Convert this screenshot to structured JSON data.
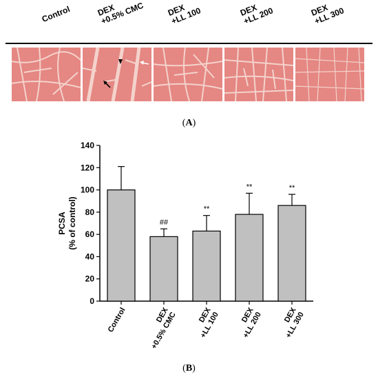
{
  "panel_a": {
    "caption_letter": "A",
    "columns": [
      {
        "line1": "Control",
        "line2": ""
      },
      {
        "line1": "DEX",
        "line2": "+0.5% CMC"
      },
      {
        "line1": "DEX",
        "line2": "+LL 100"
      },
      {
        "line1": "DEX",
        "line2": "+LL 200"
      },
      {
        "line1": "DEX",
        "line2": "+LL 300"
      }
    ],
    "tissue_color": "#e58783",
    "fiber_color": "#f4d3cc",
    "arrow_black": "#000000",
    "arrow_white": "#ffffff"
  },
  "panel_b": {
    "caption_letter": "B"
  },
  "chart_data": {
    "type": "bar",
    "categories": [
      {
        "line1": "Control",
        "line2": ""
      },
      {
        "line1": "DEX",
        "line2": "+0.5% CMC"
      },
      {
        "line1": "DEX",
        "line2": "+LL 100"
      },
      {
        "line1": "DEX",
        "line2": "+LL 200"
      },
      {
        "line1": "DEX",
        "line2": "+LL 300"
      }
    ],
    "values": [
      100,
      58,
      63,
      78,
      86
    ],
    "errors": [
      21,
      7,
      14,
      19,
      10
    ],
    "annotations": [
      "",
      "##",
      "**",
      "**",
      "**"
    ],
    "ylabel_line1": "PCSA",
    "ylabel_line2": "(% of control)",
    "ylim": [
      0,
      140
    ],
    "yticks": [
      0,
      20,
      40,
      60,
      80,
      100,
      120,
      140
    ],
    "bar_color": "#c0c0c0",
    "grid": false
  }
}
